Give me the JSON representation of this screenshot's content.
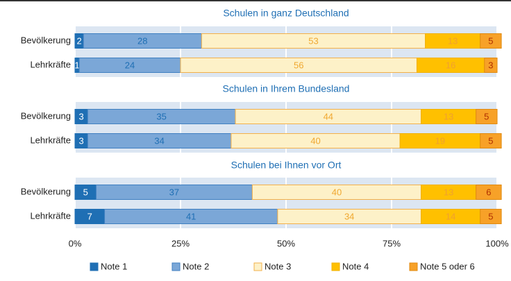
{
  "chart_data": {
    "type": "stacked-barh",
    "group_titles": [
      "Schulen in ganz Deutschland",
      "Schulen in Ihrem Bundesland",
      "Schulen bei Ihnen vor Ort"
    ],
    "categories": [
      "Bevölkerung",
      "Lehrkräfte",
      "Bevölkerung",
      "Lehrkräfte",
      "Bevölkerung",
      "Lehrkräfte"
    ],
    "series": [
      {
        "name": "Note 1",
        "color": "#1f6fb4",
        "values": [
          2,
          1,
          3,
          3,
          5,
          7
        ]
      },
      {
        "name": "Note 2",
        "color": "#7ba7d7",
        "values": [
          28,
          24,
          35,
          34,
          37,
          41
        ]
      },
      {
        "name": "Note 3",
        "color": "#fdf1c8",
        "values": [
          53,
          56,
          44,
          40,
          40,
          34
        ]
      },
      {
        "name": "Note 4",
        "color": "#ffc000",
        "values": [
          13,
          16,
          13,
          19,
          13,
          14
        ]
      },
      {
        "name": "Note 5 oder 6",
        "color": "#f7a128",
        "values": [
          5,
          3,
          5,
          5,
          6,
          5
        ]
      }
    ],
    "xlim": [
      0,
      100
    ],
    "xticks": [
      {
        "value": 0,
        "label": "0%"
      },
      {
        "value": 25,
        "label": "25%"
      },
      {
        "value": 50,
        "label": "50%"
      },
      {
        "value": 75,
        "label": "75%"
      },
      {
        "value": 100,
        "label": "100%"
      }
    ],
    "grid": true
  }
}
